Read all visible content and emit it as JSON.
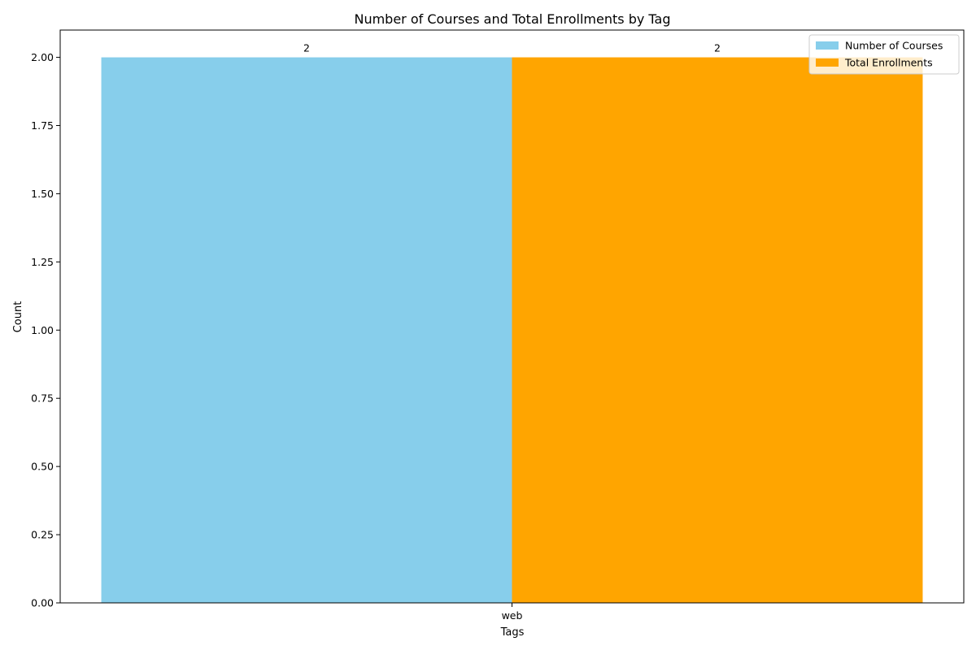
{
  "chart_data": {
    "type": "bar",
    "title": "Number of Courses and Total Enrollments by Tag",
    "xlabel": "Tags",
    "ylabel": "Count",
    "categories": [
      "web"
    ],
    "series": [
      {
        "name": "Number of Courses",
        "values": [
          2
        ],
        "color": "#87CEEB"
      },
      {
        "name": "Total Enrollments",
        "values": [
          2
        ],
        "color": "#FFA500"
      }
    ],
    "ylim": [
      0,
      2.1
    ],
    "yticks": [
      "0.00",
      "0.25",
      "0.50",
      "0.75",
      "1.00",
      "1.25",
      "1.50",
      "1.75",
      "2.00"
    ],
    "data_labels": [
      "2",
      "2"
    ],
    "grid": false,
    "legend": "top-right"
  }
}
